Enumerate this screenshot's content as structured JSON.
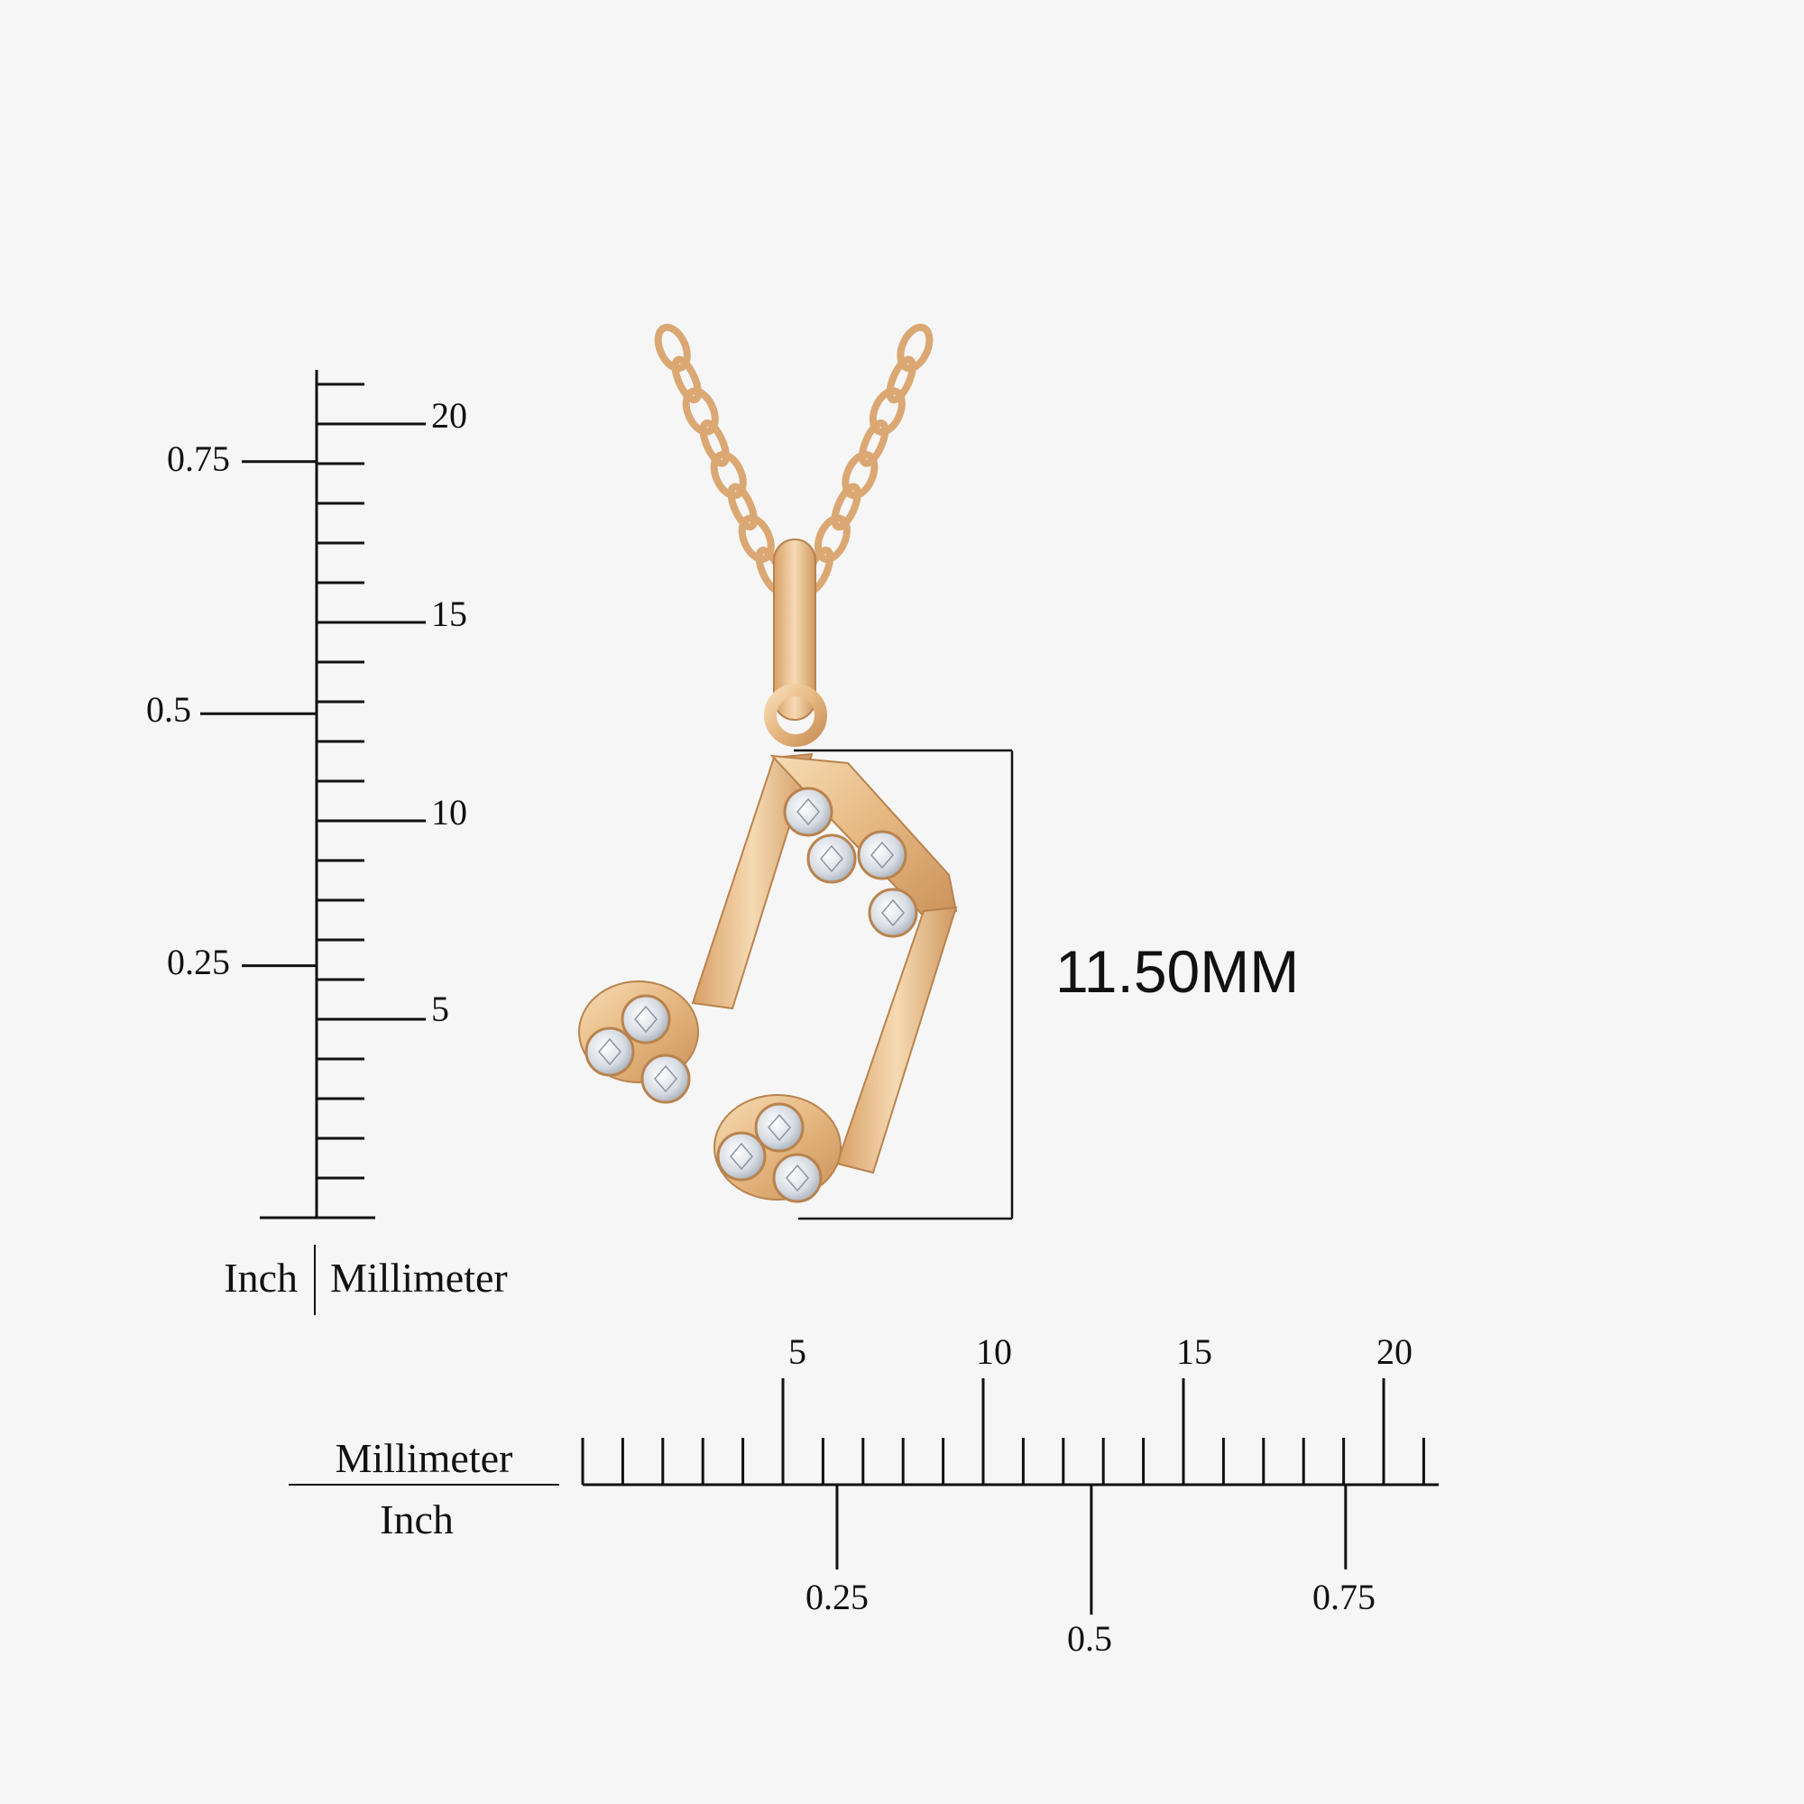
{
  "colors": {
    "background": "#f6f6f6",
    "ink": "#111111",
    "gold_light": "#f3d2a6",
    "gold_mid": "#e4b47c",
    "gold_dark": "#c28c54",
    "diamond": "#d9dde3"
  },
  "dimension": {
    "label": "11.50MM"
  },
  "vertical_ruler": {
    "unit_left": "Inch",
    "unit_right": "Millimeter",
    "mm_labels": [
      "5",
      "10",
      "15",
      "20"
    ],
    "inch_labels": [
      "0.25",
      "0.5",
      "0.75"
    ]
  },
  "horizontal_ruler": {
    "unit_top": "Millimeter",
    "unit_bottom": "Inch",
    "mm_labels": [
      "5",
      "10",
      "15",
      "20"
    ],
    "inch_labels": [
      "0.25",
      "0.5",
      "0.75"
    ]
  },
  "product": {
    "icon": "music-note-pendant-icon",
    "chain_icon": "chain-icon"
  }
}
